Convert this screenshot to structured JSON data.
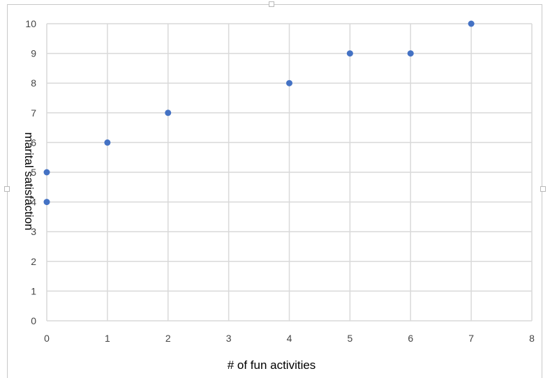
{
  "chart_data": {
    "type": "scatter",
    "title": "",
    "xlabel": "# of fun activities",
    "ylabel": "marital satisfaction",
    "xlim": [
      0,
      8
    ],
    "ylim": [
      0,
      10
    ],
    "x_ticks": [
      0,
      1,
      2,
      3,
      4,
      5,
      6,
      7,
      8
    ],
    "y_ticks": [
      0,
      1,
      2,
      3,
      4,
      5,
      6,
      7,
      8,
      9,
      10
    ],
    "grid": true,
    "legend": "none",
    "marker_color": "#4472C4",
    "gridline_color": "#d9d9d9",
    "series": [
      {
        "points": [
          {
            "x": 0,
            "y": 4
          },
          {
            "x": 0,
            "y": 5
          },
          {
            "x": 1,
            "y": 6
          },
          {
            "x": 2,
            "y": 7
          },
          {
            "x": 4,
            "y": 8
          },
          {
            "x": 5,
            "y": 9
          },
          {
            "x": 6,
            "y": 9
          },
          {
            "x": 7,
            "y": 10
          }
        ]
      }
    ]
  }
}
